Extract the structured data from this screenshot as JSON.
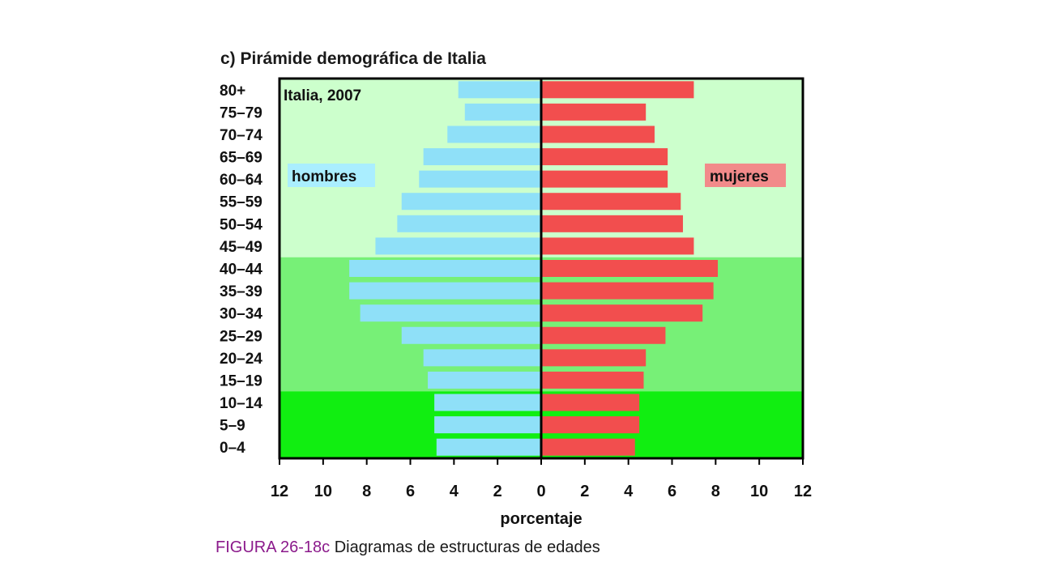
{
  "chart_data": {
    "type": "bar",
    "title": "c) Pirámide demográfica de Italia",
    "annotation": "Italia, 2007",
    "xlabel": "porcentaje",
    "xlim": [
      -12,
      12
    ],
    "x_tick_labels": [
      "12",
      "10",
      "8",
      "6",
      "4",
      "2",
      "0",
      "2",
      "4",
      "6",
      "8",
      "10",
      "12"
    ],
    "categories": [
      "80+",
      "75–79",
      "70–74",
      "65–69",
      "60–64",
      "55–59",
      "50–54",
      "45–49",
      "40–44",
      "35–39",
      "30–34",
      "25–29",
      "20–24",
      "15–19",
      "10–14",
      "5–9",
      "0–4"
    ],
    "series": [
      {
        "name": "hombres",
        "color": "#8fe0f8",
        "values": [
          3.8,
          3.5,
          4.3,
          5.4,
          5.6,
          6.4,
          6.6,
          7.6,
          8.8,
          8.8,
          8.3,
          6.4,
          5.4,
          5.2,
          4.9,
          4.9,
          4.8
        ]
      },
      {
        "name": "mujeres",
        "color": "#f24e4e",
        "values": [
          7.0,
          4.8,
          5.2,
          5.8,
          5.8,
          6.4,
          6.5,
          7.0,
          8.1,
          7.9,
          7.4,
          5.7,
          4.8,
          4.7,
          4.5,
          4.5,
          4.3
        ]
      }
    ],
    "background_bands": [
      {
        "from_category": "80+",
        "to_category": "45–49",
        "color": "#ccffcc"
      },
      {
        "from_category": "40–44",
        "to_category": "15–19",
        "color": "#77f077"
      },
      {
        "from_category": "10–14",
        "to_category": "0–4",
        "color": "#11ee11"
      }
    ],
    "legend": [
      {
        "label": "hombres",
        "bg": "#aaeeff"
      },
      {
        "label": "mujeres",
        "bg": "#f28a8a"
      }
    ],
    "grid": false
  },
  "caption": {
    "figure": "FIGURA 26-18c",
    "text": " Diagramas de estructuras de edades"
  }
}
